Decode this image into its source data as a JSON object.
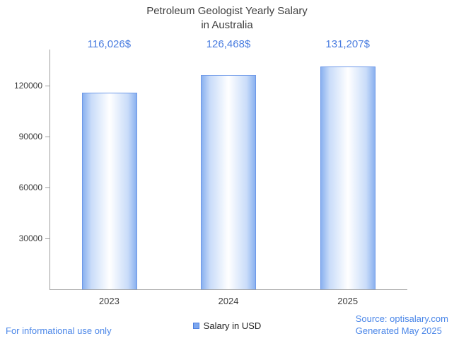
{
  "title": {
    "line1": "Petroleum Geologist Yearly Salary",
    "line2": "in Australia"
  },
  "chart_data": {
    "type": "bar",
    "title": "Petroleum Geologist Yearly Salary in Australia",
    "categories": [
      "2023",
      "2024",
      "2025"
    ],
    "values": [
      116026,
      126468,
      131207
    ],
    "value_labels": [
      "116,026$",
      "126,468$",
      "131,207$"
    ],
    "series_name": "Salary in USD",
    "xlabel": "",
    "ylabel": "",
    "ylim": [
      0,
      140000
    ],
    "yticks": [
      30000,
      60000,
      90000,
      120000
    ],
    "ytick_labels": [
      "30000",
      "60000",
      "90000",
      "120000"
    ],
    "grid": false,
    "legend_position": "bottom"
  },
  "legend": {
    "label": "Salary in USD"
  },
  "footer": {
    "left": "For informational use only",
    "source": "Source: optisalary.com",
    "generated": "Generated May 2025"
  },
  "colors": {
    "accent_text": "#4a7de0",
    "footer_link": "#4a86e8",
    "bar_border": "#6e99e8",
    "bar_fill_edge": "#8ab1ef",
    "bar_fill_center": "#ffffff",
    "axis": "#9e9e9e",
    "title_text": "#3f3f3f"
  }
}
